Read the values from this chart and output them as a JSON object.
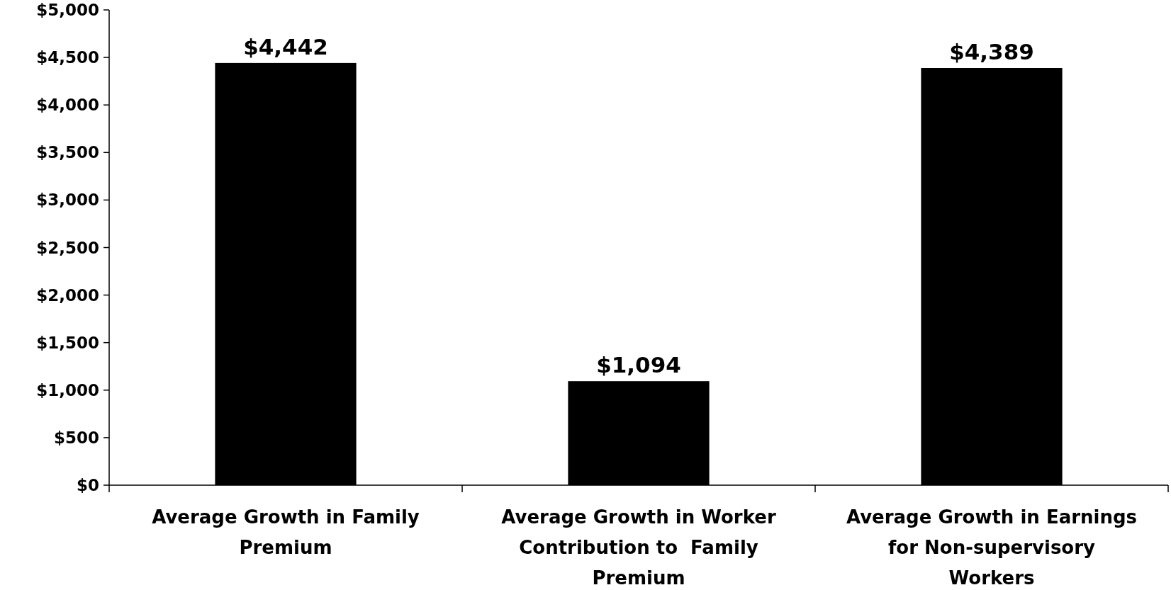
{
  "chart_data": {
    "type": "bar",
    "categories": [
      "Average Growth in Family Premium",
      "Average Growth in Worker Contribution to  Family Premium",
      "Average Growth in Earnings for Non-supervisory Workers"
    ],
    "values": [
      4442,
      1094,
      4389
    ],
    "color": "#000000",
    "value_labels": [
      "$4,442",
      "$1,094",
      "$4,389"
    ],
    "ylim": [
      0,
      5000
    ],
    "yticks": [
      {
        "value": 0,
        "label": "$0"
      },
      {
        "value": 500,
        "label": "$500"
      },
      {
        "value": 1000,
        "label": "$1,000"
      },
      {
        "value": 1500,
        "label": "$1,500"
      },
      {
        "value": 2000,
        "label": "$2,000"
      },
      {
        "value": 2500,
        "label": "$2,500"
      },
      {
        "value": 3000,
        "label": "$3,000"
      },
      {
        "value": 3500,
        "label": "$3,500"
      },
      {
        "value": 4000,
        "label": "$4,000"
      },
      {
        "value": 4500,
        "label": "$4,500"
      },
      {
        "value": 5000,
        "label": "$5,000"
      }
    ],
    "grid": false
  }
}
